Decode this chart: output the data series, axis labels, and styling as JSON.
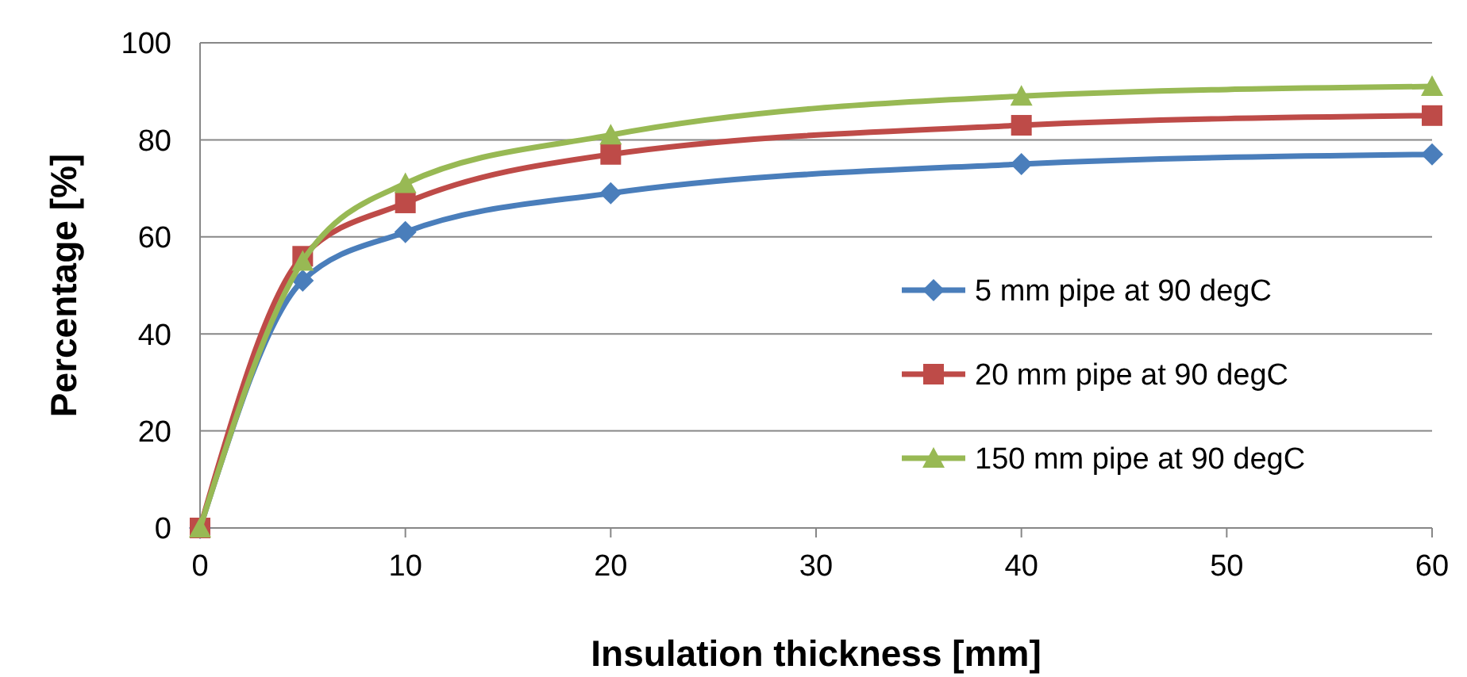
{
  "chart_data": {
    "type": "line",
    "xlabel": "Insulation thickness [mm]",
    "ylabel": "Percentage [%]",
    "x": [
      0,
      5,
      10,
      20,
      40,
      60
    ],
    "series": [
      {
        "name": "5 mm pipe at 90 degC",
        "color": "#4a7ebb",
        "values": [
          0,
          51,
          61,
          69,
          75,
          77
        ],
        "marker": "diamond"
      },
      {
        "name": "20 mm pipe at 90 degC",
        "color": "#be4b48",
        "values": [
          0,
          56,
          67,
          77,
          83,
          85
        ],
        "marker": "square"
      },
      {
        "name": "150 mm pipe at 90 degC",
        "color": "#98b954",
        "values": [
          0,
          55,
          71,
          81,
          89,
          91
        ],
        "marker": "triangle"
      }
    ],
    "xlim": [
      0,
      60
    ],
    "xticks": [
      0,
      10,
      20,
      30,
      40,
      50,
      60
    ],
    "ylim": [
      0,
      100
    ],
    "yticks": [
      0,
      20,
      40,
      60,
      80,
      100
    ],
    "grid": "y",
    "legend": "right",
    "line_style": "solid"
  }
}
